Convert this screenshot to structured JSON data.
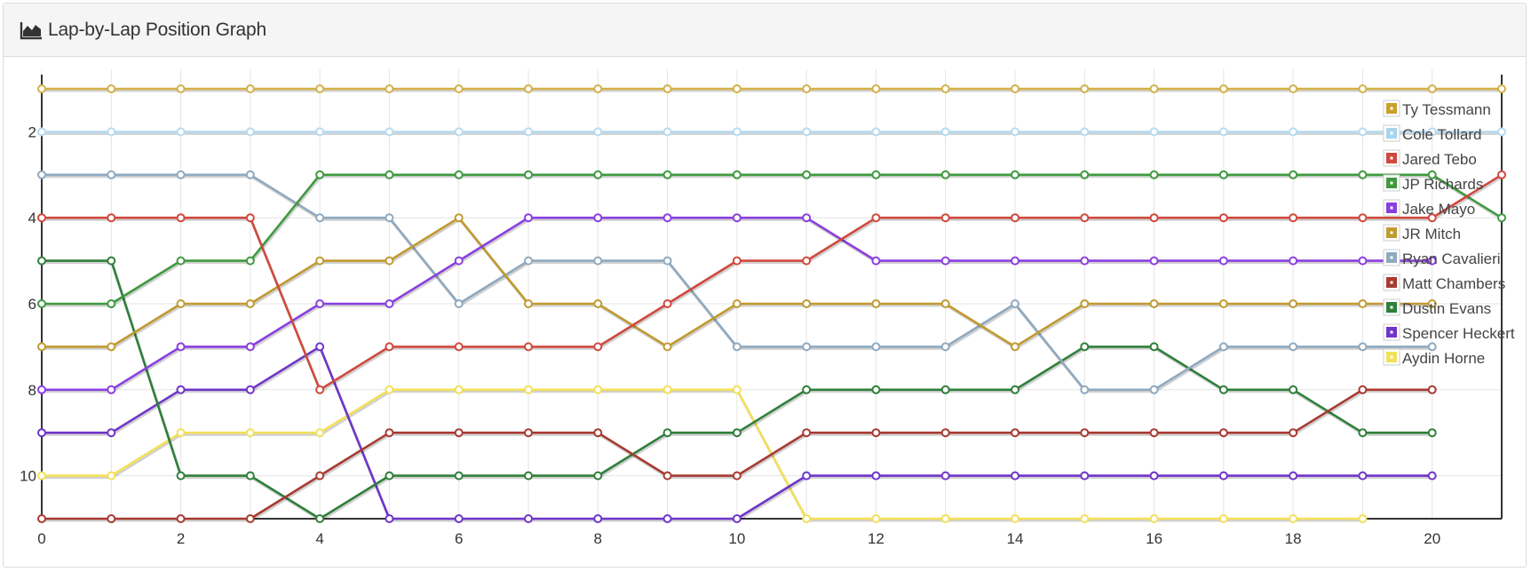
{
  "panel": {
    "title": "Lap-by-Lap Position Graph",
    "icon": "area-chart-icon"
  },
  "chart_data": {
    "type": "line",
    "xlim": [
      0,
      21
    ],
    "ylim": [
      11,
      1
    ],
    "y_inverted": true,
    "x_ticks": [
      0,
      2,
      4,
      6,
      8,
      10,
      12,
      14,
      16,
      18,
      20
    ],
    "y_ticks": [
      2,
      4,
      6,
      8,
      10
    ],
    "grid": true,
    "legend_position": "top-right",
    "series": [
      {
        "name": "Ty Tessmann",
        "color": "#c9a227",
        "line_color": "#d4b048",
        "values": [
          1,
          1,
          1,
          1,
          1,
          1,
          1,
          1,
          1,
          1,
          1,
          1,
          1,
          1,
          1,
          1,
          1,
          1,
          1,
          1,
          1,
          1
        ]
      },
      {
        "name": "Cole Tollard",
        "color": "#a8d4ee",
        "line_color": "#b7dcf0",
        "values": [
          2,
          2,
          2,
          2,
          2,
          2,
          2,
          2,
          2,
          2,
          2,
          2,
          2,
          2,
          2,
          2,
          2,
          2,
          2,
          2,
          2,
          2
        ]
      },
      {
        "name": "Jared Tebo",
        "color": "#d0493e",
        "line_color": "#d0493e",
        "values": [
          4,
          4,
          4,
          4,
          8,
          7,
          7,
          7,
          7,
          6,
          5,
          5,
          4,
          4,
          4,
          4,
          4,
          4,
          4,
          4,
          4,
          3
        ]
      },
      {
        "name": "JP Richards",
        "color": "#3f9a3f",
        "line_color": "#3f9a3f",
        "values": [
          6,
          6,
          5,
          5,
          3,
          3,
          3,
          3,
          3,
          3,
          3,
          3,
          3,
          3,
          3,
          3,
          3,
          3,
          3,
          3,
          3,
          4
        ]
      },
      {
        "name": "Jake Mayo",
        "color": "#8a3fe0",
        "line_color": "#8a3fe0",
        "values": [
          8,
          8,
          7,
          7,
          6,
          6,
          5,
          4,
          4,
          4,
          4,
          4,
          5,
          5,
          5,
          5,
          5,
          5,
          5,
          5,
          5
        ]
      },
      {
        "name": "JR Mitch",
        "color": "#c19a30",
        "line_color": "#c19a30",
        "values": [
          7,
          7,
          6,
          6,
          5,
          5,
          4,
          6,
          6,
          7,
          6,
          6,
          6,
          6,
          7,
          6,
          6,
          6,
          6,
          6,
          6
        ]
      },
      {
        "name": "Ryan Cavalieri",
        "color": "#8fa9bf",
        "line_color": "#8fa9bf",
        "values": [
          3,
          3,
          3,
          3,
          4,
          4,
          6,
          5,
          5,
          5,
          7,
          7,
          7,
          7,
          6,
          8,
          8,
          7,
          7,
          7,
          7
        ]
      },
      {
        "name": "Matt Chambers",
        "color": "#a83a32",
        "line_color": "#a83a32",
        "values": [
          11,
          11,
          11,
          11,
          10,
          9,
          9,
          9,
          9,
          10,
          10,
          9,
          9,
          9,
          9,
          9,
          9,
          9,
          9,
          8,
          8
        ]
      },
      {
        "name": "Dustin Evans",
        "color": "#2f7f3a",
        "line_color": "#2f7f3a",
        "values": [
          5,
          5,
          10,
          10,
          11,
          10,
          10,
          10,
          10,
          9,
          9,
          8,
          8,
          8,
          8,
          7,
          7,
          8,
          8,
          9,
          9
        ]
      },
      {
        "name": "Spencer Heckert",
        "color": "#6f35c9",
        "line_color": "#6f35c9",
        "values": [
          9,
          9,
          8,
          8,
          7,
          11,
          11,
          11,
          11,
          11,
          11,
          10,
          10,
          10,
          10,
          10,
          10,
          10,
          10,
          10,
          10
        ]
      },
      {
        "name": "Aydin Horne",
        "color": "#f3e05a",
        "line_color": "#f3e05a",
        "values": [
          10,
          10,
          9,
          9,
          9,
          8,
          8,
          8,
          8,
          8,
          8,
          11,
          11,
          11,
          11,
          11,
          11,
          11,
          11,
          11
        ]
      }
    ]
  }
}
